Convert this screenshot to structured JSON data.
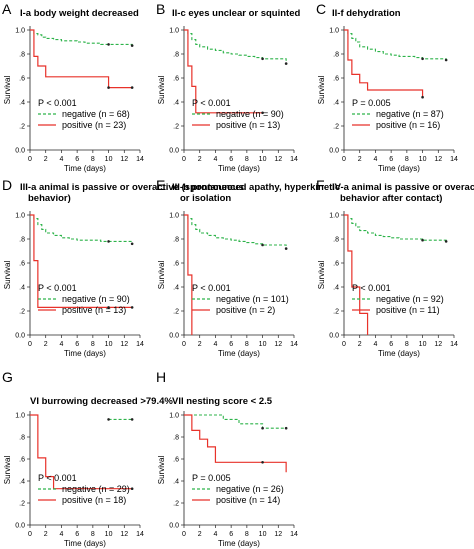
{
  "figure": {
    "axis_title_y": "Survival",
    "axis_title_x": "Time (days)",
    "colors": {
      "negative": "#2db34a",
      "positive": "#e8322a",
      "axis": "#222222"
    }
  },
  "chart_data": [
    {
      "type": "line",
      "letter": "A",
      "title": "I-a body weight decreased",
      "xlabel": "Time (days)",
      "ylabel": "Survival",
      "xlim": [
        0,
        14
      ],
      "ylim": [
        0,
        1.0
      ],
      "xticks": [
        "0",
        "2",
        "4",
        "6",
        "8",
        "10",
        "12",
        "14"
      ],
      "yticks": [
        "0.0",
        ".2",
        ".4",
        ".6",
        ".8",
        "1.0"
      ],
      "pvalue": "P < 0.001",
      "series": [
        {
          "name": "negative (n = 68)",
          "x": [
            0,
            0.5,
            1,
            1.5,
            2,
            3,
            4,
            5,
            6,
            7,
            9,
            10,
            13
          ],
          "y": [
            1.0,
            0.97,
            0.96,
            0.94,
            0.93,
            0.92,
            0.91,
            0.91,
            0.9,
            0.89,
            0.88,
            0.88,
            0.87
          ],
          "censor": [
            [
              10,
              0.88
            ],
            [
              13,
              0.87
            ]
          ]
        },
        {
          "name": "positive (n = 23)",
          "x": [
            0,
            0.5,
            1,
            2,
            10,
            13
          ],
          "y": [
            1.0,
            0.78,
            0.7,
            0.61,
            0.52,
            0.52
          ],
          "censor": [
            [
              10,
              0.52
            ],
            [
              13,
              0.52
            ]
          ]
        }
      ]
    },
    {
      "type": "line",
      "letter": "B",
      "title": "II-c eyes unclear or squinted",
      "xlabel": "Time (days)",
      "ylabel": "Survival",
      "xlim": [
        0,
        14
      ],
      "ylim": [
        0,
        1.0
      ],
      "xticks": [
        "0",
        "2",
        "4",
        "6",
        "8",
        "10",
        "12",
        "14"
      ],
      "yticks": [
        "0.0",
        ".2",
        ".4",
        ".6",
        ".8",
        "1.0"
      ],
      "pvalue": "P < 0.001",
      "series": [
        {
          "name": "negative (n = 90)",
          "x": [
            0,
            0.5,
            1,
            1.5,
            2,
            3,
            4,
            5,
            6,
            7,
            8,
            9,
            10,
            13
          ],
          "y": [
            1.0,
            0.97,
            0.92,
            0.88,
            0.86,
            0.84,
            0.83,
            0.81,
            0.8,
            0.79,
            0.78,
            0.77,
            0.76,
            0.72
          ],
          "censor": [
            [
              10,
              0.76
            ],
            [
              13,
              0.72
            ]
          ]
        },
        {
          "name": "positive (n = 13)",
          "x": [
            0,
            0.5,
            1,
            1.5,
            10
          ],
          "y": [
            1.0,
            0.7,
            0.53,
            0.31,
            0.31
          ],
          "censor": [
            [
              10,
              0.31
            ]
          ]
        }
      ]
    },
    {
      "type": "line",
      "letter": "C",
      "title": "II-f dehydration",
      "xlabel": "Time (days)",
      "ylabel": "Survival",
      "xlim": [
        0,
        14
      ],
      "ylim": [
        0,
        1.0
      ],
      "xticks": [
        "0",
        "2",
        "4",
        "6",
        "8",
        "10",
        "12",
        "14"
      ],
      "yticks": [
        "0.0",
        ".2",
        ".4",
        ".6",
        ".8",
        "1.0"
      ],
      "pvalue": "P = 0.005",
      "series": [
        {
          "name": "negative (n = 87)",
          "x": [
            0,
            0.5,
            1,
            1.5,
            2,
            3,
            4,
            5,
            6,
            7,
            9,
            10,
            13
          ],
          "y": [
            1.0,
            0.97,
            0.93,
            0.9,
            0.86,
            0.84,
            0.82,
            0.8,
            0.79,
            0.78,
            0.77,
            0.76,
            0.75
          ],
          "censor": [
            [
              10,
              0.76
            ],
            [
              13,
              0.75
            ]
          ]
        },
        {
          "name": "positive (n = 16)",
          "x": [
            0,
            0.5,
            1,
            2,
            3,
            10
          ],
          "y": [
            1.0,
            0.75,
            0.63,
            0.56,
            0.5,
            0.44
          ],
          "censor": [
            [
              10,
              0.44
            ]
          ]
        }
      ]
    },
    {
      "type": "line",
      "letter": "D",
      "title": "III-a animal is passive or overactive (spontaneous behavior)",
      "xlabel": "Time (days)",
      "ylabel": "Survival",
      "xlim": [
        0,
        14
      ],
      "ylim": [
        0,
        1.0
      ],
      "xticks": [
        "0",
        "2",
        "4",
        "6",
        "8",
        "10",
        "12",
        "14"
      ],
      "yticks": [
        "0.0",
        ".2",
        ".4",
        ".6",
        ".8",
        "1.0"
      ],
      "pvalue": "P < 0.001",
      "series": [
        {
          "name": "negative (n = 90)",
          "x": [
            0,
            0.5,
            1,
            1.5,
            2,
            3,
            4,
            5,
            6,
            7,
            9,
            10,
            13
          ],
          "y": [
            1.0,
            0.97,
            0.92,
            0.88,
            0.85,
            0.83,
            0.81,
            0.8,
            0.79,
            0.79,
            0.78,
            0.78,
            0.76
          ],
          "censor": [
            [
              10,
              0.78
            ],
            [
              13,
              0.76
            ]
          ]
        },
        {
          "name": "positive (n = 13)",
          "x": [
            0,
            0.5,
            1,
            2,
            13
          ],
          "y": [
            1.0,
            0.62,
            0.23,
            0.23,
            0.23
          ],
          "censor": [
            [
              10,
              0.23
            ],
            [
              13,
              0.23
            ]
          ]
        }
      ]
    },
    {
      "type": "line",
      "letter": "E",
      "title": "III-b pronounced apathy, hyperkinetic or isolation",
      "xlabel": "Time (days)",
      "ylabel": "Survival",
      "xlim": [
        0,
        14
      ],
      "ylim": [
        0,
        1.0
      ],
      "xticks": [
        "0",
        "2",
        "4",
        "6",
        "8",
        "10",
        "12",
        "14"
      ],
      "yticks": [
        "0.0",
        ".2",
        ".4",
        ".6",
        ".8",
        "1.0"
      ],
      "pvalue": "P < 0.001",
      "series": [
        {
          "name": "negative (n = 101)",
          "x": [
            0,
            0.5,
            1,
            1.5,
            2,
            3,
            4,
            5,
            6,
            7,
            8,
            9,
            10,
            13
          ],
          "y": [
            1.0,
            0.97,
            0.92,
            0.88,
            0.85,
            0.83,
            0.81,
            0.8,
            0.79,
            0.78,
            0.77,
            0.76,
            0.75,
            0.72
          ],
          "censor": [
            [
              10,
              0.75
            ],
            [
              13,
              0.72
            ]
          ]
        },
        {
          "name": "positive (n = 2)",
          "x": [
            0,
            0.5,
            1
          ],
          "y": [
            1.0,
            0.5,
            0.0
          ],
          "censor": []
        }
      ]
    },
    {
      "type": "line",
      "letter": "F",
      "title": "IV-a animal is passive or overactive (flight behavior after contact)",
      "xlabel": "Time (days)",
      "ylabel": "Survival",
      "xlim": [
        0,
        14
      ],
      "ylim": [
        0,
        1.0
      ],
      "xticks": [
        "0",
        "2",
        "4",
        "6",
        "8",
        "10",
        "12",
        "14"
      ],
      "yticks": [
        "0.0",
        ".2",
        ".4",
        ".6",
        ".8",
        "1.0"
      ],
      "pvalue": "P < 0.001",
      "series": [
        {
          "name": "negative (n = 92)",
          "x": [
            0,
            0.5,
            1,
            1.5,
            2,
            3,
            4,
            5,
            6,
            7,
            9,
            10,
            13
          ],
          "y": [
            1.0,
            0.97,
            0.93,
            0.9,
            0.87,
            0.85,
            0.83,
            0.82,
            0.81,
            0.8,
            0.8,
            0.79,
            0.78
          ],
          "censor": [
            [
              10,
              0.79
            ],
            [
              13,
              0.78
            ]
          ]
        },
        {
          "name": "positive (n = 11)",
          "x": [
            0,
            0.5,
            1,
            2,
            3
          ],
          "y": [
            1.0,
            0.7,
            0.4,
            0.18,
            0.0
          ],
          "censor": []
        }
      ]
    },
    {
      "type": "line",
      "letter": "G",
      "title": "VI burrowing decreased >79.4%",
      "xlabel": "Time (days)",
      "ylabel": "Survival",
      "xlim": [
        0,
        14
      ],
      "ylim": [
        0,
        1.0
      ],
      "xticks": [
        "0",
        "2",
        "4",
        "6",
        "8",
        "10",
        "12",
        "14"
      ],
      "yticks": [
        "0.0",
        ".2",
        ".4",
        ".6",
        ".8",
        "1.0"
      ],
      "pvalue": "P < 0.001",
      "series": [
        {
          "name": "negative (n = 29)",
          "x": [
            10,
            13
          ],
          "y": [
            0.96,
            0.96
          ],
          "censor": [
            [
              10,
              0.96
            ],
            [
              13,
              0.96
            ]
          ]
        },
        {
          "name": "positive (n = 18)",
          "x": [
            0,
            1,
            2,
            3,
            13
          ],
          "y": [
            1.0,
            0.61,
            0.44,
            0.33,
            0.33
          ],
          "censor": [
            [
              13,
              0.33
            ]
          ]
        }
      ]
    },
    {
      "type": "line",
      "letter": "H",
      "title": "VII nesting score < 2.5",
      "xlabel": "Time (days)",
      "ylabel": "Survival",
      "xlim": [
        0,
        14
      ],
      "ylim": [
        0,
        1.0
      ],
      "xticks": [
        "0",
        "2",
        "4",
        "6",
        "8",
        "10",
        "12",
        "14"
      ],
      "yticks": [
        "0.0",
        ".2",
        ".4",
        ".6",
        ".8",
        "1.0"
      ],
      "pvalue": "P = 0.005",
      "series": [
        {
          "name": "negative (n = 26)",
          "x": [
            0,
            3,
            5,
            7,
            10,
            13
          ],
          "y": [
            1.0,
            1.0,
            0.96,
            0.92,
            0.88,
            0.88
          ],
          "censor": [
            [
              10,
              0.88
            ],
            [
              13,
              0.88
            ]
          ]
        },
        {
          "name": "positive (n = 14)",
          "x": [
            0,
            1,
            2,
            3,
            4,
            10,
            13
          ],
          "y": [
            1.0,
            0.86,
            0.78,
            0.71,
            0.57,
            0.57,
            0.48
          ],
          "censor": [
            [
              10,
              0.57
            ]
          ]
        }
      ]
    }
  ]
}
